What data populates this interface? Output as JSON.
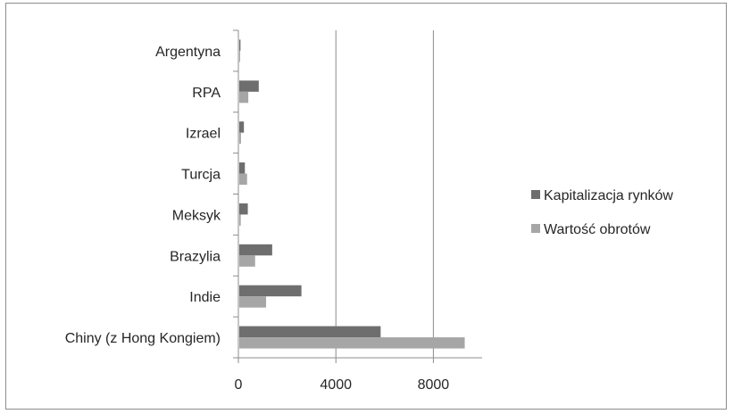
{
  "chart_data": {
    "type": "bar",
    "orientation": "horizontal",
    "categories": [
      "Chiny (z Hong Kongiem)",
      "Indie",
      "Brazylia",
      "Meksyk",
      "Turcja",
      "Izrael",
      "RPA",
      "Argentyna"
    ],
    "series": [
      {
        "name": "Kapitalizacja rynków",
        "color": "#6e6e6e",
        "values": [
          5800,
          2550,
          1350,
          350,
          230,
          190,
          800,
          50
        ]
      },
      {
        "name": "Wartość obrotów",
        "color": "#a6a6a6",
        "values": [
          9250,
          1100,
          650,
          60,
          320,
          70,
          370,
          20
        ]
      }
    ],
    "title": "",
    "xlabel": "",
    "ylabel": "",
    "xlim": [
      0,
      10000
    ],
    "xticks": [
      0,
      4000,
      8000
    ],
    "grid": true,
    "legend_position": "right"
  }
}
